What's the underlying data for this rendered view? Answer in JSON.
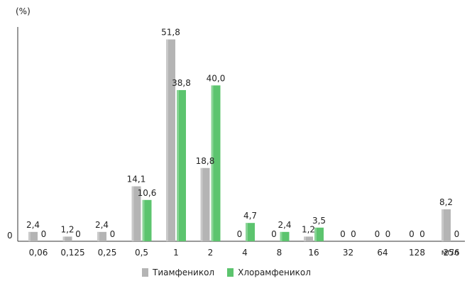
{
  "chart_data": {
    "type": "bar",
    "ylabel": "(%)",
    "y_origin_label": "0",
    "xunit": "мг/л",
    "categories": [
      "0,06",
      "0,125",
      "0,25",
      "0,5",
      "1",
      "2",
      "4",
      "8",
      "16",
      "32",
      "64",
      "128",
      "256"
    ],
    "series": [
      {
        "name": "Тиамфеникол",
        "color": "#b4b4b4",
        "values": [
          2.4,
          1.2,
          2.4,
          14.1,
          51.8,
          18.8,
          0,
          0,
          1.2,
          0,
          0,
          0,
          8.2
        ],
        "labels": [
          "2,4",
          "1,2",
          "2,4",
          "14,1",
          "51,8",
          "18,8",
          "0",
          "0",
          "1,2",
          "0",
          "0",
          "0",
          "8,2"
        ]
      },
      {
        "name": "Хлорамфеникол",
        "color": "#5cc46e",
        "values": [
          0,
          0,
          0,
          10.6,
          38.8,
          40.0,
          4.7,
          2.4,
          3.5,
          0,
          0,
          0,
          0
        ],
        "labels": [
          "0",
          "0",
          "0",
          "10,6",
          "38,8",
          "40,0",
          "4,7",
          "2,4",
          "3,5",
          "0",
          "0",
          "0",
          "0"
        ]
      }
    ],
    "ylim": [
      0,
      55
    ],
    "grid": false,
    "legend_position": "bottom-center"
  }
}
